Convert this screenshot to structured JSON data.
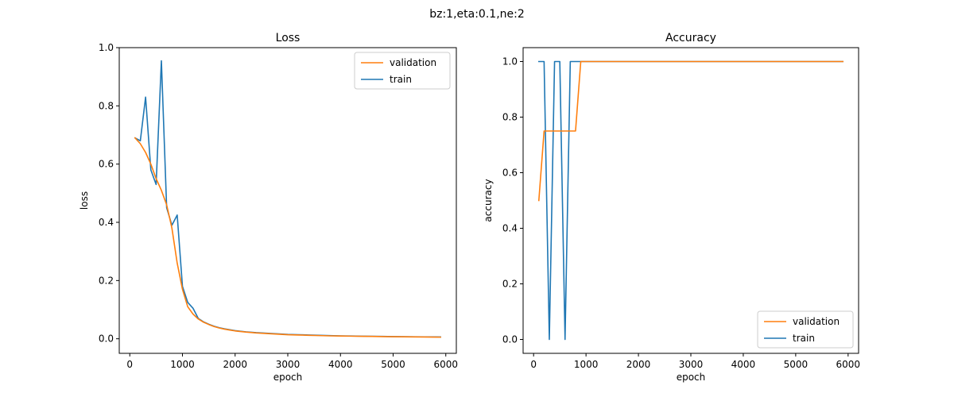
{
  "figure": {
    "suptitle": "bz:1,eta:0.1,ne:2"
  },
  "chart_data": [
    {
      "type": "line",
      "title": "Loss",
      "xlabel": "epoch",
      "ylabel": "loss",
      "xlim": [
        -200,
        6200
      ],
      "ylim": [
        -0.05,
        1.0
      ],
      "xticks": [
        0,
        1000,
        2000,
        3000,
        4000,
        5000,
        6000
      ],
      "yticks": [
        0.0,
        0.2,
        0.4,
        0.6,
        0.8,
        1.0
      ],
      "ytick_decimals": 1,
      "grid": false,
      "legend_position": "top-right",
      "series": [
        {
          "name": "validation",
          "color": "#ff7f0e",
          "x": [
            100,
            200,
            300,
            400,
            500,
            600,
            700,
            800,
            900,
            1000,
            1100,
            1200,
            1300,
            1400,
            1500,
            1600,
            1700,
            1800,
            1900,
            2000,
            2200,
            2400,
            2600,
            2800,
            3000,
            3200,
            3400,
            3600,
            3800,
            4000,
            4200,
            4400,
            4600,
            4800,
            5000,
            5200,
            5400,
            5600,
            5800,
            5900
          ],
          "y": [
            0.69,
            0.67,
            0.64,
            0.6,
            0.55,
            0.51,
            0.46,
            0.38,
            0.26,
            0.17,
            0.11,
            0.085,
            0.068,
            0.057,
            0.049,
            0.042,
            0.037,
            0.033,
            0.03,
            0.027,
            0.023,
            0.02,
            0.018,
            0.016,
            0.014,
            0.013,
            0.012,
            0.011,
            0.01,
            0.0095,
            0.009,
            0.0085,
            0.008,
            0.0075,
            0.007,
            0.0067,
            0.0064,
            0.0061,
            0.0058,
            0.0056
          ]
        },
        {
          "name": "train",
          "color": "#1f77b4",
          "x": [
            100,
            200,
            300,
            400,
            500,
            600,
            700,
            800,
            900,
            1000,
            1100,
            1200,
            1300,
            1400,
            1500,
            1600,
            1700,
            1800,
            1900,
            2000,
            2200,
            2400,
            2600,
            2800,
            3000,
            3200,
            3400,
            3600,
            3800,
            4000,
            4200,
            4400,
            4600,
            4800,
            5000,
            5200,
            5400,
            5600,
            5800,
            5900
          ],
          "y": [
            0.69,
            0.68,
            0.83,
            0.58,
            0.53,
            0.955,
            0.45,
            0.39,
            0.425,
            0.18,
            0.125,
            0.105,
            0.07,
            0.058,
            0.05,
            0.043,
            0.038,
            0.034,
            0.031,
            0.028,
            0.024,
            0.021,
            0.019,
            0.017,
            0.015,
            0.014,
            0.013,
            0.012,
            0.011,
            0.01,
            0.0095,
            0.009,
            0.0085,
            0.008,
            0.0075,
            0.0072,
            0.0069,
            0.0066,
            0.0063,
            0.006
          ]
        }
      ]
    },
    {
      "type": "line",
      "title": "Accuracy",
      "xlabel": "epoch",
      "ylabel": "accuracy",
      "xlim": [
        -200,
        6200
      ],
      "ylim": [
        -0.05,
        1.05
      ],
      "xticks": [
        0,
        1000,
        2000,
        3000,
        4000,
        5000,
        6000
      ],
      "yticks": [
        0.0,
        0.2,
        0.4,
        0.6,
        0.8,
        1.0
      ],
      "ytick_decimals": 1,
      "grid": false,
      "legend_position": "bottom-right",
      "series": [
        {
          "name": "validation",
          "color": "#ff7f0e",
          "x": [
            100,
            200,
            300,
            400,
            500,
            600,
            700,
            800,
            900,
            1000,
            2000,
            3000,
            4000,
            5000,
            5900
          ],
          "y": [
            0.5,
            0.75,
            0.75,
            0.75,
            0.75,
            0.75,
            0.75,
            0.75,
            1.0,
            1.0,
            1.0,
            1.0,
            1.0,
            1.0,
            1.0
          ]
        },
        {
          "name": "train",
          "color": "#1f77b4",
          "x": [
            100,
            200,
            300,
            400,
            500,
            600,
            700,
            800,
            900,
            1000,
            2000,
            3000,
            4000,
            5000,
            5900
          ],
          "y": [
            1.0,
            1.0,
            0.0,
            1.0,
            1.0,
            0.0,
            1.0,
            1.0,
            1.0,
            1.0,
            1.0,
            1.0,
            1.0,
            1.0,
            1.0
          ]
        }
      ]
    }
  ]
}
